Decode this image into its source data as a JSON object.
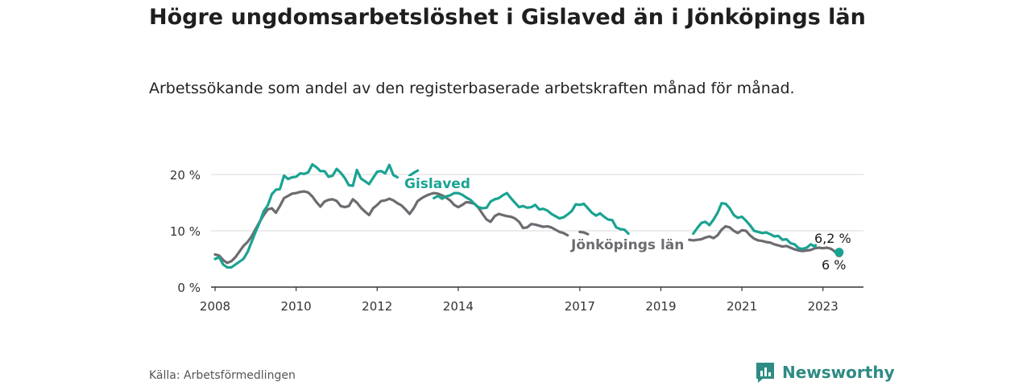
{
  "header": {
    "title": "Högre ungdomsarbetslöshet i Gislaved än i Jönköpings län",
    "subtitle": "Arbetssökande som andel av den registerbaserade arbetskraften månad för månad."
  },
  "footer": {
    "source": "Källa: Arbetsförmedlingen",
    "brand": "Newsworthy"
  },
  "colors": {
    "gislaved": "#1aa392",
    "lan": "#6d6b70",
    "grid": "#d9d9d9",
    "axis": "#333333"
  },
  "chart_data": {
    "type": "line",
    "title": "Högre ungdomsarbetslöshet i Gislaved än i Jönköpings län",
    "xlabel": "",
    "ylabel": "",
    "ylim": [
      0,
      20
    ],
    "xlim": [
      2007.9,
      2024.0
    ],
    "yticks": [
      0,
      10,
      20
    ],
    "ytick_labels": [
      "0 %",
      "10 %",
      "20 %"
    ],
    "xticks": [
      2008,
      2010,
      2012,
      2014,
      2017,
      2019,
      2021,
      2023
    ],
    "xtick_labels": [
      "2008",
      "2010",
      "2012",
      "2014",
      "2017",
      "2019",
      "2021",
      "2023"
    ],
    "series": [
      {
        "name": "Gislaved",
        "label": "Gislaved",
        "end_label": "6,2 %",
        "end_value": 6.2,
        "points": [
          [
            2008.0,
            5.0
          ],
          [
            2008.1,
            5.3
          ],
          [
            2008.2,
            4.0
          ],
          [
            2008.3,
            3.5
          ],
          [
            2008.4,
            3.5
          ],
          [
            2008.5,
            4.0
          ],
          [
            2008.6,
            4.5
          ],
          [
            2008.7,
            5.0
          ],
          [
            2008.8,
            6.2
          ],
          [
            2008.9,
            8.0
          ],
          [
            2009.0,
            9.8
          ],
          [
            2009.1,
            11.5
          ],
          [
            2009.2,
            13.5
          ],
          [
            2009.3,
            14.5
          ],
          [
            2009.4,
            16.5
          ],
          [
            2009.5,
            17.3
          ],
          [
            2009.6,
            17.4
          ],
          [
            2009.7,
            19.8
          ],
          [
            2009.8,
            19.2
          ],
          [
            2009.9,
            19.5
          ],
          [
            2010.0,
            19.6
          ],
          [
            2010.1,
            20.2
          ],
          [
            2010.2,
            20.1
          ],
          [
            2010.3,
            20.4
          ],
          [
            2010.4,
            21.8
          ],
          [
            2010.5,
            21.3
          ],
          [
            2010.6,
            20.6
          ],
          [
            2010.7,
            20.6
          ],
          [
            2010.8,
            19.6
          ],
          [
            2010.9,
            19.8
          ],
          [
            2011.0,
            21.0
          ],
          [
            2011.1,
            20.3
          ],
          [
            2011.2,
            19.4
          ],
          [
            2011.3,
            18.1
          ],
          [
            2011.4,
            18.0
          ],
          [
            2011.5,
            20.8
          ],
          [
            2011.6,
            19.3
          ],
          [
            2011.7,
            18.8
          ],
          [
            2011.8,
            18.3
          ],
          [
            2011.9,
            19.4
          ],
          [
            2012.0,
            20.5
          ],
          [
            2012.1,
            20.6
          ],
          [
            2012.2,
            20.2
          ],
          [
            2012.3,
            21.7
          ],
          [
            2012.4,
            19.9
          ],
          [
            2012.5,
            19.5
          ]
        ],
        "segments": [
          [
            [
              2012.8,
              19.8
            ],
            [
              2012.9,
              20.3
            ],
            [
              2013.0,
              20.7
            ]
          ],
          [
            [
              2013.4,
              15.8
            ],
            [
              2013.5,
              16.2
            ],
            [
              2013.6,
              15.7
            ],
            [
              2013.7,
              16.1
            ],
            [
              2013.8,
              16.3
            ],
            [
              2013.9,
              16.7
            ],
            [
              2014.0,
              16.7
            ],
            [
              2014.1,
              16.4
            ],
            [
              2014.2,
              15.9
            ],
            [
              2014.3,
              15.5
            ],
            [
              2014.4,
              14.8
            ],
            [
              2014.5,
              14.2
            ],
            [
              2014.6,
              14.0
            ],
            [
              2014.7,
              14.1
            ],
            [
              2014.8,
              15.2
            ],
            [
              2014.9,
              15.6
            ],
            [
              2015.0,
              15.8
            ],
            [
              2015.1,
              16.3
            ],
            [
              2015.2,
              16.7
            ],
            [
              2015.3,
              15.8
            ],
            [
              2015.4,
              15.0
            ],
            [
              2015.5,
              14.2
            ],
            [
              2015.6,
              14.4
            ],
            [
              2015.7,
              14.1
            ],
            [
              2015.8,
              14.2
            ],
            [
              2015.9,
              14.6
            ],
            [
              2016.0,
              13.8
            ],
            [
              2016.1,
              13.9
            ],
            [
              2016.2,
              13.6
            ],
            [
              2016.3,
              13.0
            ],
            [
              2016.4,
              12.6
            ],
            [
              2016.5,
              12.2
            ],
            [
              2016.6,
              12.4
            ],
            [
              2016.7,
              12.9
            ],
            [
              2016.8,
              13.5
            ],
            [
              2016.9,
              14.7
            ],
            [
              2017.0,
              14.6
            ],
            [
              2017.1,
              14.8
            ],
            [
              2017.2,
              14.0
            ],
            [
              2017.3,
              13.2
            ],
            [
              2017.4,
              12.7
            ],
            [
              2017.5,
              13.1
            ],
            [
              2017.6,
              12.5
            ],
            [
              2017.7,
              12.0
            ],
            [
              2017.8,
              11.9
            ],
            [
              2017.9,
              10.6
            ],
            [
              2018.0,
              10.3
            ],
            [
              2018.1,
              10.2
            ],
            [
              2018.2,
              9.5
            ]
          ],
          [
            [
              2019.8,
              9.5
            ],
            [
              2019.9,
              10.5
            ],
            [
              2020.0,
              11.4
            ],
            [
              2020.1,
              11.6
            ],
            [
              2020.2,
              11.0
            ],
            [
              2020.3,
              12.0
            ],
            [
              2020.4,
              13.2
            ],
            [
              2020.5,
              14.9
            ],
            [
              2020.6,
              14.8
            ],
            [
              2020.7,
              14.0
            ],
            [
              2020.8,
              12.8
            ],
            [
              2020.9,
              12.3
            ],
            [
              2021.0,
              12.5
            ],
            [
              2021.1,
              11.8
            ],
            [
              2021.2,
              11.0
            ],
            [
              2021.3,
              10.0
            ],
            [
              2021.4,
              9.8
            ],
            [
              2021.5,
              9.6
            ],
            [
              2021.6,
              9.7
            ],
            [
              2021.7,
              9.4
            ],
            [
              2021.8,
              9.0
            ],
            [
              2021.9,
              9.1
            ],
            [
              2022.0,
              8.4
            ],
            [
              2022.1,
              8.5
            ],
            [
              2022.2,
              7.8
            ],
            [
              2022.3,
              7.6
            ],
            [
              2022.4,
              6.9
            ],
            [
              2022.5,
              6.8
            ],
            [
              2022.6,
              7.0
            ],
            [
              2022.7,
              7.6
            ],
            [
              2022.8,
              7.2
            ],
            [
              2022.9,
              8.4
            ]
          ],
          [
            [
              2023.3,
              6.2
            ],
            [
              2023.4,
              6.2
            ]
          ]
        ]
      },
      {
        "name": "Jönköpings län",
        "label": "Jönköpings län",
        "end_label": "6 %",
        "end_value": 6.0,
        "points": [
          [
            2008.0,
            5.8
          ],
          [
            2008.1,
            5.6
          ],
          [
            2008.2,
            4.8
          ],
          [
            2008.3,
            4.3
          ],
          [
            2008.4,
            4.6
          ],
          [
            2008.5,
            5.3
          ],
          [
            2008.6,
            6.3
          ],
          [
            2008.7,
            7.3
          ],
          [
            2008.8,
            8.0
          ],
          [
            2008.9,
            9.0
          ],
          [
            2009.0,
            10.3
          ],
          [
            2009.1,
            11.6
          ],
          [
            2009.2,
            12.8
          ],
          [
            2009.3,
            13.8
          ],
          [
            2009.4,
            14.0
          ],
          [
            2009.5,
            13.2
          ],
          [
            2009.6,
            14.4
          ],
          [
            2009.7,
            15.8
          ],
          [
            2009.8,
            16.2
          ],
          [
            2009.9,
            16.6
          ],
          [
            2010.0,
            16.7
          ],
          [
            2010.1,
            16.9
          ],
          [
            2010.2,
            17.0
          ],
          [
            2010.3,
            16.8
          ],
          [
            2010.4,
            16.1
          ],
          [
            2010.5,
            15.1
          ],
          [
            2010.6,
            14.3
          ],
          [
            2010.7,
            15.2
          ],
          [
            2010.8,
            15.5
          ],
          [
            2010.9,
            15.6
          ],
          [
            2011.0,
            15.3
          ],
          [
            2011.1,
            14.4
          ],
          [
            2011.2,
            14.2
          ],
          [
            2011.3,
            14.4
          ],
          [
            2011.4,
            15.6
          ],
          [
            2011.5,
            15.0
          ],
          [
            2011.6,
            14.1
          ],
          [
            2011.7,
            13.4
          ],
          [
            2011.8,
            12.8
          ],
          [
            2011.9,
            14.0
          ],
          [
            2012.0,
            14.6
          ],
          [
            2012.1,
            15.3
          ],
          [
            2012.2,
            15.4
          ],
          [
            2012.3,
            15.7
          ],
          [
            2012.4,
            15.4
          ],
          [
            2012.5,
            14.9
          ],
          [
            2012.6,
            14.5
          ],
          [
            2012.7,
            13.8
          ],
          [
            2012.8,
            13.0
          ],
          [
            2012.9,
            14.0
          ],
          [
            2013.0,
            15.3
          ],
          [
            2013.1,
            15.8
          ],
          [
            2013.2,
            16.2
          ],
          [
            2013.3,
            16.5
          ],
          [
            2013.4,
            16.7
          ],
          [
            2013.5,
            16.6
          ],
          [
            2013.6,
            16.3
          ],
          [
            2013.7,
            15.9
          ],
          [
            2013.8,
            15.4
          ],
          [
            2013.9,
            14.6
          ],
          [
            2014.0,
            14.2
          ],
          [
            2014.1,
            14.6
          ],
          [
            2014.2,
            15.1
          ],
          [
            2014.3,
            15.0
          ],
          [
            2014.4,
            14.8
          ],
          [
            2014.5,
            14.1
          ],
          [
            2014.6,
            13.0
          ],
          [
            2014.7,
            12.0
          ],
          [
            2014.8,
            11.6
          ],
          [
            2014.9,
            12.6
          ],
          [
            2015.0,
            13.0
          ],
          [
            2015.1,
            12.8
          ],
          [
            2015.2,
            12.6
          ],
          [
            2015.3,
            12.5
          ],
          [
            2015.4,
            12.2
          ],
          [
            2015.5,
            11.6
          ],
          [
            2015.6,
            10.5
          ],
          [
            2015.7,
            10.6
          ],
          [
            2015.8,
            11.2
          ],
          [
            2015.9,
            11.1
          ],
          [
            2016.0,
            10.9
          ],
          [
            2016.1,
            10.7
          ],
          [
            2016.2,
            10.8
          ],
          [
            2016.3,
            10.6
          ],
          [
            2016.4,
            10.2
          ],
          [
            2016.5,
            9.8
          ],
          [
            2016.6,
            9.6
          ],
          [
            2016.7,
            9.2
          ]
        ],
        "segments": [
          [
            [
              2017.0,
              9.8
            ],
            [
              2017.1,
              9.7
            ],
            [
              2017.2,
              9.4
            ]
          ],
          [
            [
              2019.7,
              8.4
            ],
            [
              2019.8,
              8.3
            ],
            [
              2019.9,
              8.4
            ],
            [
              2020.0,
              8.5
            ],
            [
              2020.1,
              8.8
            ],
            [
              2020.2,
              9.0
            ],
            [
              2020.3,
              8.7
            ],
            [
              2020.4,
              9.2
            ],
            [
              2020.5,
              10.2
            ],
            [
              2020.6,
              10.8
            ],
            [
              2020.7,
              10.6
            ],
            [
              2020.8,
              10.0
            ],
            [
              2020.9,
              9.6
            ],
            [
              2021.0,
              10.1
            ],
            [
              2021.1,
              10.0
            ],
            [
              2021.2,
              9.2
            ],
            [
              2021.3,
              8.6
            ],
            [
              2021.4,
              8.3
            ],
            [
              2021.5,
              8.2
            ],
            [
              2021.6,
              8.0
            ],
            [
              2021.7,
              7.9
            ],
            [
              2021.8,
              7.6
            ],
            [
              2021.9,
              7.4
            ],
            [
              2022.0,
              7.2
            ],
            [
              2022.1,
              7.3
            ],
            [
              2022.2,
              7.0
            ],
            [
              2022.3,
              6.7
            ],
            [
              2022.4,
              6.5
            ],
            [
              2022.5,
              6.4
            ],
            [
              2022.6,
              6.5
            ],
            [
              2022.7,
              6.6
            ],
            [
              2022.8,
              6.9
            ],
            [
              2022.9,
              7.0
            ],
            [
              2023.0,
              6.9
            ],
            [
              2023.1,
              7.0
            ],
            [
              2023.2,
              6.8
            ],
            [
              2023.3,
              6.3
            ],
            [
              2023.4,
              6.0
            ]
          ]
        ]
      }
    ]
  }
}
